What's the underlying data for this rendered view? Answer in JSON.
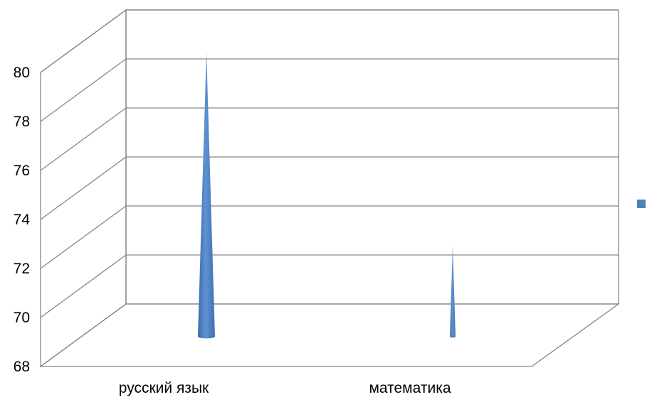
{
  "chart_data": {
    "type": "bar",
    "style": "3d-cone",
    "categories": [
      "русский язык",
      "математика"
    ],
    "series": [
      {
        "values": [
          80.6,
          72.7
        ],
        "color": "#4F81BD"
      }
    ],
    "ylim": [
      68,
      80
    ],
    "yticks": [
      "68",
      "70",
      "72",
      "74",
      "76",
      "78",
      "80"
    ],
    "grid": true,
    "legend": "right",
    "title": "",
    "xlabel": "",
    "ylabel": ""
  }
}
